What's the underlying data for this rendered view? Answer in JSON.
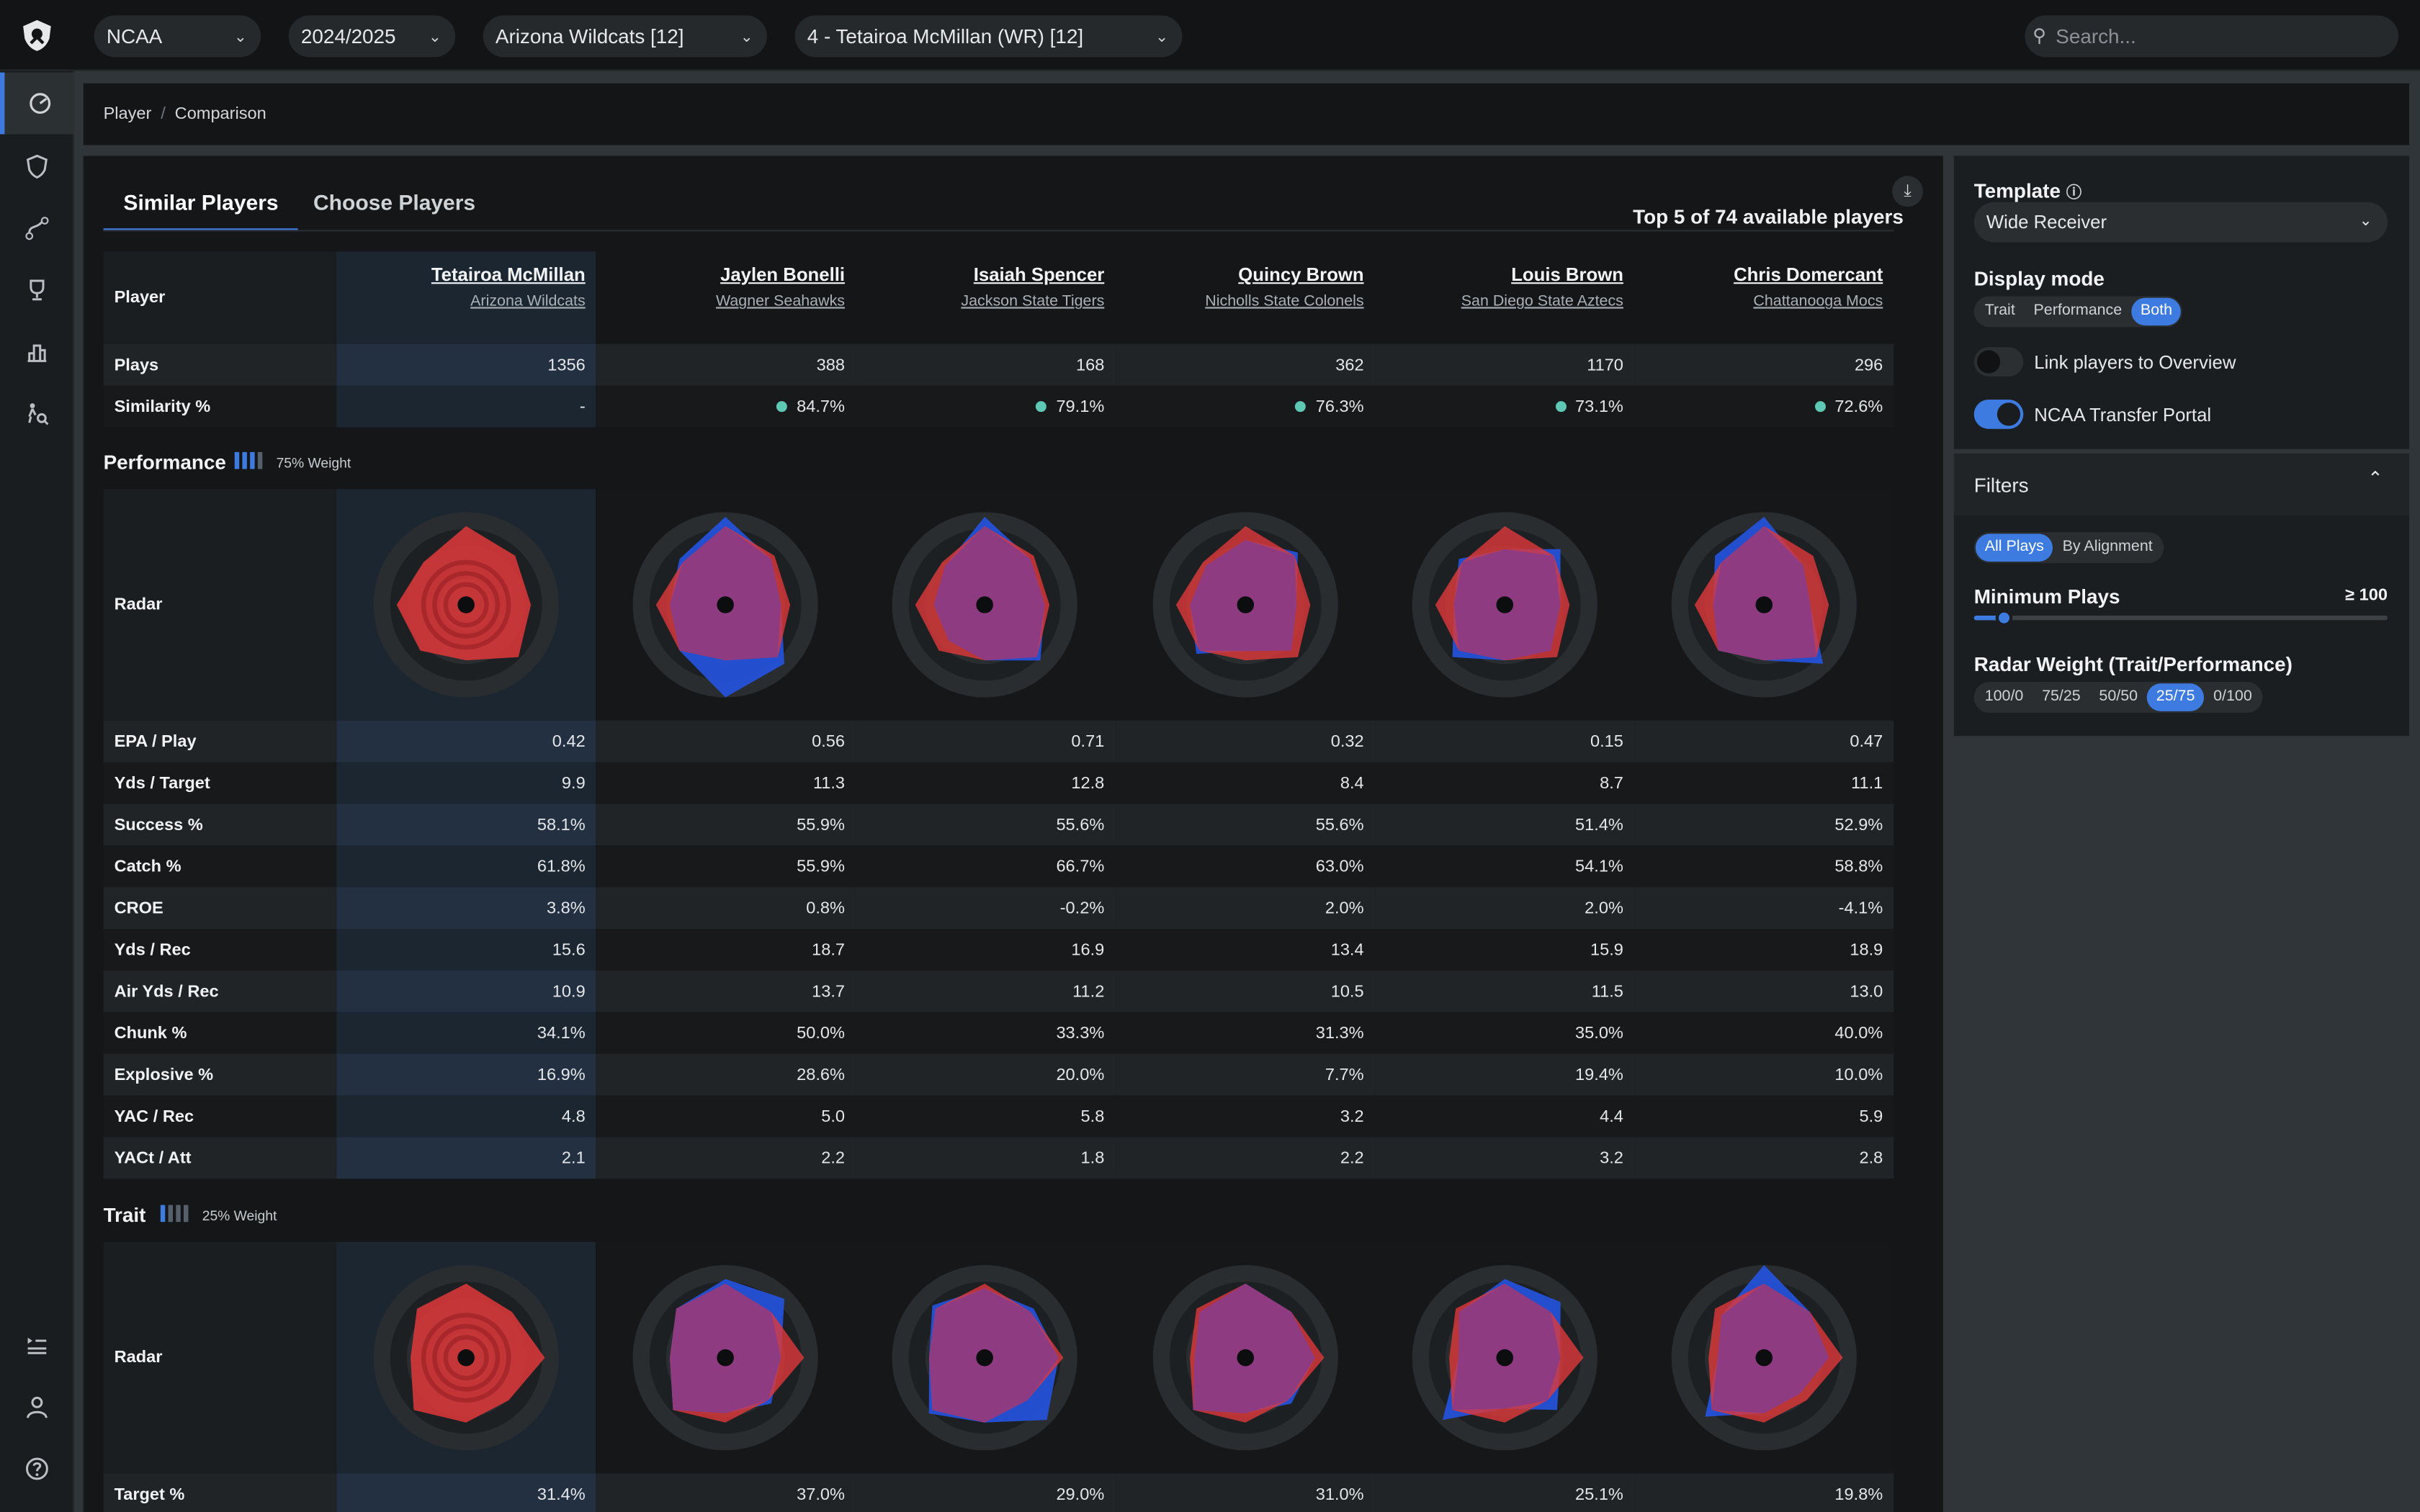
{
  "header": {
    "selects": [
      "NCAA",
      "2024/2025",
      "Arizona Wildcats [12]",
      "4 - Tetairoa McMillan (WR) [12]"
    ],
    "search_placeholder": "Search..."
  },
  "sidebar": {
    "icons": [
      "dashboard-icon",
      "shield-icon",
      "branch-icon",
      "trophy-icon",
      "podium-icon",
      "scout-icon"
    ],
    "bottom_icons": [
      "playlist-icon",
      "user-icon",
      "help-icon"
    ]
  },
  "breadcrumb": {
    "items": [
      "Player",
      "Comparison"
    ]
  },
  "tabs": [
    "Similar Players",
    "Choose Players"
  ],
  "summary": "Top 5 of 74 available players",
  "players": [
    {
      "name": "Tetairoa McMillan",
      "team": "Arizona Wildcats",
      "plays": "1356",
      "similarity": "-"
    },
    {
      "name": "Jaylen Bonelli",
      "team": "Wagner Seahawks",
      "plays": "388",
      "similarity": "84.7%"
    },
    {
      "name": "Isaiah Spencer",
      "team": "Jackson State Tigers",
      "plays": "168",
      "similarity": "79.1%"
    },
    {
      "name": "Quincy Brown",
      "team": "Nicholls State Colonels",
      "plays": "362",
      "similarity": "76.3%"
    },
    {
      "name": "Louis Brown",
      "team": "San Diego State Aztecs",
      "plays": "1170",
      "similarity": "73.1%"
    },
    {
      "name": "Chris Domercant",
      "team": "Chattanooga Mocs",
      "plays": "296",
      "similarity": "72.6%"
    }
  ],
  "labels": {
    "player": "Player",
    "plays": "Plays",
    "similarity": "Similarity %",
    "radar": "Radar"
  },
  "performance": {
    "title": "Performance",
    "weight": "75% Weight",
    "weight_bars": 3,
    "rows": [
      {
        "label": "EPA / Play",
        "values": [
          "0.42",
          "0.56",
          "0.71",
          "0.32",
          "0.15",
          "0.47"
        ]
      },
      {
        "label": "Yds / Target",
        "values": [
          "9.9",
          "11.3",
          "12.8",
          "8.4",
          "8.7",
          "11.1"
        ]
      },
      {
        "label": "Success %",
        "values": [
          "58.1%",
          "55.9%",
          "55.6%",
          "55.6%",
          "51.4%",
          "52.9%"
        ]
      },
      {
        "label": "Catch %",
        "values": [
          "61.8%",
          "55.9%",
          "66.7%",
          "63.0%",
          "54.1%",
          "58.8%"
        ]
      },
      {
        "label": "CROE",
        "values": [
          "3.8%",
          "0.8%",
          "-0.2%",
          "2.0%",
          "2.0%",
          "-4.1%"
        ]
      },
      {
        "label": "Yds / Rec",
        "values": [
          "15.6",
          "18.7",
          "16.9",
          "13.4",
          "15.9",
          "18.9"
        ]
      },
      {
        "label": "Air Yds / Rec",
        "values": [
          "10.9",
          "13.7",
          "11.2",
          "10.5",
          "11.5",
          "13.0"
        ]
      },
      {
        "label": "Chunk %",
        "values": [
          "34.1%",
          "50.0%",
          "33.3%",
          "31.3%",
          "35.0%",
          "40.0%"
        ]
      },
      {
        "label": "Explosive %",
        "values": [
          "16.9%",
          "28.6%",
          "20.0%",
          "7.7%",
          "19.4%",
          "10.0%"
        ]
      },
      {
        "label": "YAC / Rec",
        "values": [
          "4.8",
          "5.0",
          "5.8",
          "3.2",
          "4.4",
          "5.9"
        ]
      },
      {
        "label": "YACt / Att",
        "values": [
          "2.1",
          "2.2",
          "1.8",
          "2.2",
          "3.2",
          "2.8"
        ]
      }
    ]
  },
  "trait": {
    "title": "Trait",
    "weight": "25% Weight",
    "weight_bars": 1,
    "rows": [
      {
        "label": "Target %",
        "values": [
          "31.4%",
          "37.0%",
          "29.0%",
          "31.0%",
          "25.1%",
          "19.8%"
        ]
      }
    ]
  },
  "radar_levels": {
    "performance": [
      [
        0.85,
        0.75,
        0.7,
        0.8,
        0.6,
        0.7,
        0.75,
        0.65
      ],
      [
        0.95,
        0.7,
        0.6,
        0.9,
        1.0,
        0.7,
        0.6,
        0.7
      ],
      [
        0.95,
        0.7,
        0.65,
        0.85,
        0.6,
        0.55,
        0.55,
        0.6
      ],
      [
        0.7,
        0.8,
        0.55,
        0.7,
        0.5,
        0.75,
        0.6,
        0.6
      ],
      [
        0.6,
        0.85,
        0.6,
        0.7,
        0.6,
        0.8,
        0.55,
        0.7
      ],
      [
        0.95,
        0.6,
        0.5,
        0.9,
        0.6,
        0.7,
        0.55,
        0.75
      ]
    ],
    "trait": [
      [
        0.8,
        0.7,
        0.85,
        0.65,
        0.7,
        0.8,
        0.6,
        0.75
      ],
      [
        0.85,
        0.9,
        0.6,
        0.7,
        0.6,
        0.8,
        0.6,
        0.75
      ],
      [
        0.75,
        0.75,
        0.8,
        0.95,
        0.7,
        0.85,
        0.6,
        0.8
      ],
      [
        0.8,
        0.7,
        0.75,
        0.7,
        0.6,
        0.8,
        0.55,
        0.7
      ],
      [
        0.85,
        0.85,
        0.6,
        0.8,
        0.55,
        0.95,
        0.5,
        0.7
      ],
      [
        1.0,
        0.7,
        0.7,
        0.55,
        0.6,
        0.9,
        0.5,
        0.65
      ]
    ]
  },
  "colors": {
    "player": "#e0383a",
    "compare": "#2451d8",
    "accent": "#3d7be0",
    "positive": "#5fc8b4"
  },
  "settings": {
    "template_label": "Template",
    "template_value": "Wide Receiver",
    "display_mode_label": "Display mode",
    "display_modes": [
      "Trait",
      "Performance",
      "Both"
    ],
    "display_mode_selected": "Both",
    "toggles": [
      {
        "label": "Link players to Overview",
        "on": false
      },
      {
        "label": "NCAA Transfer Portal",
        "on": true
      }
    ]
  },
  "filters": {
    "title": "Filters",
    "alignment_modes": [
      "All Plays",
      "By Alignment"
    ],
    "alignment_selected": "All Plays",
    "min_plays_label": "Minimum Plays",
    "min_plays_value": "≥ 100",
    "min_plays_fraction": 0.07,
    "radar_weight_label": "Radar Weight (Trait/Performance)",
    "radar_weight_options": [
      "100/0",
      "75/25",
      "50/50",
      "25/75",
      "0/100"
    ],
    "radar_weight_selected": "25/75"
  }
}
